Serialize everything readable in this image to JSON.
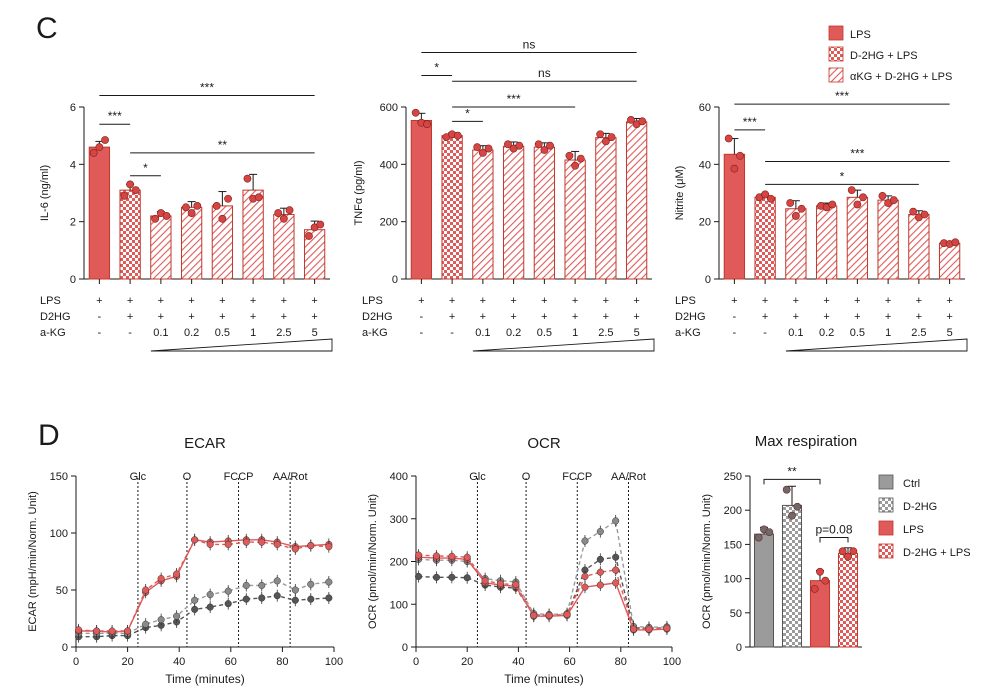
{
  "colors": {
    "red": "#e05a5a",
    "red_dark": "#c0392b",
    "gray": "#9b9b9b",
    "gray_dark": "#555555",
    "point": "#d64541"
  },
  "panel_c": {
    "label": "C",
    "legend": [
      "LPS",
      "D-2HG + LPS",
      "αKG + D-2HG + LPS"
    ],
    "rows": {
      "labels": [
        "LPS",
        "D2HG",
        "a-KG"
      ],
      "lps": [
        "+",
        "+",
        "+",
        "+",
        "+",
        "+",
        "+",
        "+"
      ],
      "d2hg": [
        "-",
        "+",
        "+",
        "+",
        "+",
        "+",
        "+",
        "+"
      ],
      "akg": [
        "-",
        "-",
        "0.1",
        "0.2",
        "0.5",
        "1",
        "2.5",
        "5"
      ]
    }
  },
  "panel_d": {
    "label": "D",
    "legend": [
      "Ctrl",
      "D-2HG",
      "LPS",
      "D-2HG + LPS"
    ]
  },
  "chart_data": [
    {
      "id": "il6",
      "type": "bar",
      "title": "",
      "xlabel": "",
      "ylabel": "IL-6 (ng/ml)",
      "ylim": [
        0,
        6
      ],
      "yticks": [
        "0",
        "2",
        "4",
        "6"
      ],
      "categories": [
        "LPS",
        "D-2HG + LPS",
        "0.1",
        "0.2",
        "0.5",
        "1",
        "2.5",
        "5"
      ],
      "values": [
        4.6,
        3.1,
        2.2,
        2.5,
        2.55,
        3.1,
        2.25,
        1.72
      ],
      "errors": [
        0.2,
        0.2,
        0.15,
        0.2,
        0.5,
        0.55,
        0.22,
        0.3
      ],
      "points": [
        [
          4.4,
          4.6,
          4.85
        ],
        [
          2.9,
          3.3,
          3.1
        ],
        [
          2.1,
          2.3,
          2.2
        ],
        [
          2.5,
          2.3,
          2.55
        ],
        [
          2.55,
          2.1,
          2.8
        ],
        [
          3.5,
          2.8,
          2.85
        ],
        [
          2.3,
          2.1,
          2.4
        ],
        [
          1.5,
          1.8,
          1.9
        ]
      ],
      "fills": [
        "LPS",
        "D-2HG + LPS",
        "αKG",
        "αKG",
        "αKG",
        "αKG",
        "αKG",
        "αKG"
      ],
      "significance": [
        {
          "from": 0,
          "to": 7,
          "label": "***",
          "y": 6.4
        },
        {
          "from": 0,
          "to": 1,
          "label": "***",
          "y": 5.4
        },
        {
          "from": 1,
          "to": 7,
          "label": "**",
          "y": 4.4
        },
        {
          "from": 1,
          "to": 2,
          "label": "*",
          "y": 3.6
        }
      ]
    },
    {
      "id": "tnfa",
      "type": "bar",
      "title": "",
      "xlabel": "",
      "ylabel": "TNFα (pg/ml)",
      "ylim": [
        0,
        600
      ],
      "yticks": [
        "0",
        "200",
        "400",
        "600"
      ],
      "categories": [
        "LPS",
        "D-2HG + LPS",
        "0.1",
        "0.2",
        "0.5",
        "1",
        "2.5",
        "5"
      ],
      "values": [
        553,
        500,
        450,
        463,
        460,
        415,
        493,
        548
      ],
      "errors": [
        25,
        10,
        15,
        15,
        15,
        30,
        15,
        12
      ],
      "points": [
        [
          580,
          545,
          540
        ],
        [
          495,
          505,
          500
        ],
        [
          460,
          440,
          455
        ],
        [
          470,
          455,
          465
        ],
        [
          470,
          450,
          465
        ],
        [
          430,
          395,
          420
        ],
        [
          505,
          480,
          495
        ],
        [
          555,
          540,
          550
        ]
      ],
      "fills": [
        "LPS",
        "D-2HG + LPS",
        "αKG",
        "αKG",
        "αKG",
        "αKG",
        "αKG",
        "αKG"
      ],
      "significance": [
        {
          "from": 0,
          "to": 7,
          "label": "ns",
          "y": 790
        },
        {
          "from": 0,
          "to": 1,
          "label": "*",
          "y": 710
        },
        {
          "from": 1,
          "to": 7,
          "label": "ns",
          "y": 690
        },
        {
          "from": 1,
          "to": 5,
          "label": "***",
          "y": 600
        },
        {
          "from": 1,
          "to": 2,
          "label": "*",
          "y": 550
        }
      ]
    },
    {
      "id": "nitrite",
      "type": "bar",
      "title": "",
      "xlabel": "",
      "ylabel": "Nitrite (μM)",
      "ylim": [
        0,
        60
      ],
      "yticks": [
        "0",
        "20",
        "40",
        "60"
      ],
      "categories": [
        "LPS",
        "D-2HG + LPS",
        "0.1",
        "0.2",
        "0.5",
        "1",
        "2.5",
        "5"
      ],
      "values": [
        43.5,
        28.5,
        24.5,
        25.5,
        28.5,
        27.5,
        22.5,
        12.5
      ],
      "errors": [
        5.5,
        1.2,
        2.8,
        1.0,
        2.5,
        1.5,
        1.3,
        0.4
      ],
      "points": [
        [
          49,
          38.5,
          43
        ],
        [
          28.5,
          29.5,
          28
        ],
        [
          26.5,
          22,
          24.5
        ],
        [
          25.5,
          25,
          26
        ],
        [
          31,
          26,
          28.5
        ],
        [
          29,
          26.5,
          27.5
        ],
        [
          23.5,
          21.5,
          22.5
        ],
        [
          12.5,
          12.2,
          12.8
        ]
      ],
      "fills": [
        "LPS",
        "D-2HG + LPS",
        "αKG",
        "αKG",
        "αKG",
        "αKG",
        "αKG",
        "αKG"
      ],
      "significance": [
        {
          "from": 0,
          "to": 7,
          "label": "***",
          "y": 61
        },
        {
          "from": 0,
          "to": 1,
          "label": "***",
          "y": 52
        },
        {
          "from": 1,
          "to": 7,
          "label": "***",
          "y": 41
        },
        {
          "from": 1,
          "to": 6,
          "label": "*",
          "y": 33
        }
      ]
    },
    {
      "id": "ecar",
      "type": "line",
      "title": "ECAR",
      "xlabel": "Time (minutes)",
      "ylabel": "ECAR (mpH/min/Norm. Unit)",
      "xlim": [
        0,
        100
      ],
      "ylim": [
        0,
        150
      ],
      "xticks": [
        "0",
        "20",
        "40",
        "60",
        "80",
        "100"
      ],
      "yticks": [
        "0",
        "50",
        "100",
        "150"
      ],
      "injections": [
        {
          "x": 24,
          "label": "Glc"
        },
        {
          "x": 43,
          "label": "O"
        },
        {
          "x": 63,
          "label": "FCCP"
        },
        {
          "x": 83,
          "label": "AA/Rot"
        }
      ],
      "x": [
        1,
        8,
        14,
        20,
        27,
        33,
        39,
        46,
        52,
        59,
        66,
        72,
        78,
        85,
        91,
        98
      ],
      "series": [
        {
          "name": "Ctrl",
          "values": [
            9,
            9,
            10,
            10,
            17,
            19,
            22,
            33,
            35,
            38,
            42,
            43,
            45,
            41,
            42,
            43
          ]
        },
        {
          "name": "D-2HG",
          "values": [
            12,
            12,
            12,
            12,
            20,
            24,
            27,
            41,
            46,
            49,
            54,
            54,
            58,
            50,
            55,
            57
          ]
        },
        {
          "name": "LPS",
          "values": [
            14,
            14,
            13,
            14,
            48,
            58,
            62,
            94,
            92,
            93,
            94,
            94,
            92,
            88,
            89,
            90
          ]
        },
        {
          "name": "D-2HG + LPS",
          "values": [
            15,
            14,
            14,
            14,
            50,
            60,
            64,
            94,
            90,
            90,
            92,
            92,
            90,
            86,
            89,
            88
          ]
        }
      ]
    },
    {
      "id": "ocr",
      "type": "line",
      "title": "OCR",
      "xlabel": "Time (minutes)",
      "ylabel": "OCR (pmol/min/Norm. Unit)",
      "xlim": [
        0,
        100
      ],
      "ylim": [
        0,
        400
      ],
      "xticks": [
        "0",
        "20",
        "40",
        "60",
        "80",
        "100"
      ],
      "yticks": [
        "0",
        "100",
        "200",
        "300",
        "400"
      ],
      "injections": [
        {
          "x": 24,
          "label": "Glc"
        },
        {
          "x": 43,
          "label": "O"
        },
        {
          "x": 63,
          "label": "FCCP"
        },
        {
          "x": 83,
          "label": "AA/Rot"
        }
      ],
      "x": [
        1,
        8,
        14,
        20,
        27,
        33,
        39,
        46,
        52,
        59,
        66,
        72,
        78,
        85,
        91,
        98
      ],
      "series": [
        {
          "name": "Ctrl",
          "values": [
            165,
            163,
            163,
            162,
            145,
            140,
            138,
            75,
            74,
            75,
            180,
            205,
            210,
            45,
            44,
            45
          ]
        },
        {
          "name": "D-2HG",
          "values": [
            205,
            203,
            203,
            200,
            160,
            155,
            152,
            78,
            76,
            78,
            248,
            270,
            295,
            48,
            46,
            47
          ]
        },
        {
          "name": "LPS",
          "values": [
            210,
            208,
            208,
            205,
            150,
            145,
            142,
            72,
            72,
            74,
            140,
            145,
            150,
            40,
            40,
            42
          ]
        },
        {
          "name": "D-2HG + LPS",
          "values": [
            215,
            213,
            212,
            210,
            155,
            148,
            146,
            74,
            74,
            76,
            165,
            175,
            180,
            42,
            42,
            44
          ]
        }
      ]
    },
    {
      "id": "maxresp",
      "type": "bar",
      "title": "Max respiration",
      "xlabel": "",
      "ylabel": "OCR (pmol/min/Norm. Unit)",
      "ylim": [
        0,
        250
      ],
      "yticks": [
        "0",
        "50",
        "100",
        "150",
        "200",
        "250"
      ],
      "categories": [
        "Ctrl",
        "D-2HG",
        "LPS",
        "D-2HG + LPS"
      ],
      "values": [
        165,
        207,
        97,
        137
      ],
      "errors": [
        10,
        28,
        15,
        8
      ],
      "points": [
        [
          160,
          172,
          168
        ],
        [
          230,
          192,
          205
        ],
        [
          85,
          110,
          97
        ],
        [
          140,
          132,
          140
        ]
      ],
      "fills": [
        "Ctrl",
        "D-2HG",
        "LPS",
        "D-2HG + LPS"
      ],
      "significance": [
        {
          "from": 0,
          "to": 2,
          "label": "**",
          "y": 245
        },
        {
          "from": 2,
          "to": 3,
          "label": "p=0.08",
          "y": 160
        }
      ]
    }
  ]
}
